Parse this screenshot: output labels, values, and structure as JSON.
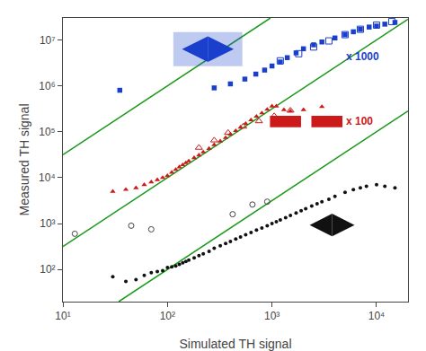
{
  "chart_data": {
    "type": "scatter",
    "xlabel": "Simulated TH signal",
    "ylabel": "Measured TH signal",
    "log": true,
    "grid": false,
    "xlim": [
      10,
      20000
    ],
    "ylim": [
      20,
      30000000
    ],
    "xticks": [
      {
        "value": 10,
        "label": "10¹"
      },
      {
        "value": 100,
        "label": "10²"
      },
      {
        "value": 1000,
        "label": "10³"
      },
      {
        "value": 10000,
        "label": "10⁴"
      }
    ],
    "yticks": [
      {
        "value": 100,
        "label": "10²"
      },
      {
        "value": 1000,
        "label": "10³"
      },
      {
        "value": 10000,
        "label": "10⁴"
      },
      {
        "value": 100000,
        "label": "10⁵"
      },
      {
        "value": 1000000,
        "label": "10⁶"
      },
      {
        "value": 10000000,
        "label": "10⁷"
      }
    ],
    "annotations": [
      {
        "text": "x 1000",
        "color": "#1a3fcc"
      },
      {
        "text": "x 100",
        "color": "#cc1a1a"
      }
    ],
    "series": [
      {
        "type": "line",
        "color": "#1a9a1a",
        "line_style": "solid",
        "x": [
          34.1995189,
          100,
          20000
        ],
        "values": [
          20,
          100,
          282842.712
        ]
      },
      {
        "type": "line",
        "color": "#1a9a1a",
        "line_style": "solid",
        "x": [
          10,
          100,
          20000
        ],
        "values": [
          316.227766,
          10000,
          28284271.2
        ]
      },
      {
        "type": "line",
        "color": "#1a9a1a",
        "line_style": "solid",
        "x": [
          10,
          100,
          965.489385
        ],
        "values": [
          31622.7766,
          1000000,
          30000000
        ]
      },
      {
        "type": "scatter",
        "marker": "circle",
        "color": "#111111",
        "x": [
          30,
          40,
          50,
          60,
          70,
          80,
          90,
          100,
          110,
          120,
          130,
          140,
          150,
          160,
          180,
          200,
          220,
          250,
          280,
          320,
          360,
          400,
          450,
          500,
          560,
          630,
          710,
          800,
          900,
          1000,
          1100,
          1200,
          1350,
          1500,
          1700,
          1900,
          2100,
          2400,
          2700,
          3000,
          3500,
          4000,
          5000,
          6000,
          7000,
          8000,
          10000,
          12000,
          15000
        ],
        "values": [
          70,
          55,
          60,
          75,
          85,
          90,
          95,
          110,
          115,
          120,
          130,
          140,
          150,
          160,
          180,
          200,
          220,
          250,
          290,
          330,
          370,
          410,
          460,
          510,
          570,
          640,
          720,
          800,
          900,
          1000,
          1100,
          1200,
          1350,
          1500,
          1700,
          1900,
          2100,
          2400,
          2700,
          3000,
          3400,
          3900,
          4800,
          5500,
          6000,
          6500,
          7000,
          6500,
          6000
        ]
      },
      {
        "type": "scatter",
        "marker": "circle-open",
        "color": "#444444",
        "x": [
          13,
          45,
          70,
          420,
          650,
          900
        ],
        "values": [
          600,
          900,
          750,
          1600,
          2600,
          3000
        ]
      },
      {
        "type": "scatter",
        "marker": "triangle-up",
        "color": "#cc1a1a",
        "x": [
          30,
          40,
          50,
          60,
          70,
          80,
          90,
          100,
          110,
          120,
          130,
          140,
          150,
          160,
          180,
          200,
          220,
          250,
          280,
          320,
          360,
          400,
          450,
          500,
          560,
          630,
          710,
          800,
          900,
          1000,
          1100,
          1300,
          1500,
          2000,
          3000
        ],
        "values": [
          5000,
          5500,
          6000,
          7000,
          8000,
          9000,
          10000,
          11000,
          13000,
          15000,
          17000,
          19000,
          21000,
          23000,
          27000,
          31000,
          36000,
          43000,
          52000,
          62000,
          74000,
          88000,
          105000,
          125000,
          150000,
          180000,
          215000,
          255000,
          305000,
          360000,
          360000,
          300000,
          280000,
          300000,
          350000
        ]
      },
      {
        "type": "scatter",
        "marker": "triangle-up-open",
        "color": "#cc1a1a",
        "x": [
          200,
          280,
          380,
          530,
          750,
          1050,
          1500
        ],
        "values": [
          45000,
          65000,
          95000,
          130000,
          170000,
          220000,
          290000
        ]
      },
      {
        "type": "scatter",
        "marker": "square",
        "color": "#1a3fcc",
        "x": [
          35,
          280,
          400,
          550,
          700,
          850,
          1000,
          1200,
          1400,
          1700,
          2000,
          2500,
          3000,
          4000,
          5000,
          6000,
          7000,
          8500,
          10000,
          12000,
          15000
        ],
        "values": [
          800000,
          900000,
          1100000,
          1400000,
          1800000,
          2200000,
          2700000,
          3300000,
          4100000,
          5200000,
          6400000,
          7800000,
          9000000,
          11000000,
          13000000,
          15000000,
          17000000,
          19000000,
          20000000,
          22000000,
          24000000
        ]
      },
      {
        "type": "scatter",
        "marker": "square-open",
        "color": "#1a3fcc",
        "x": [
          1200,
          1800,
          2500,
          3500,
          5000,
          7000,
          10000,
          14000
        ],
        "values": [
          3500000,
          5000000,
          7000000,
          9500000,
          13000000,
          17000000,
          21000000,
          25000000
        ]
      }
    ]
  }
}
